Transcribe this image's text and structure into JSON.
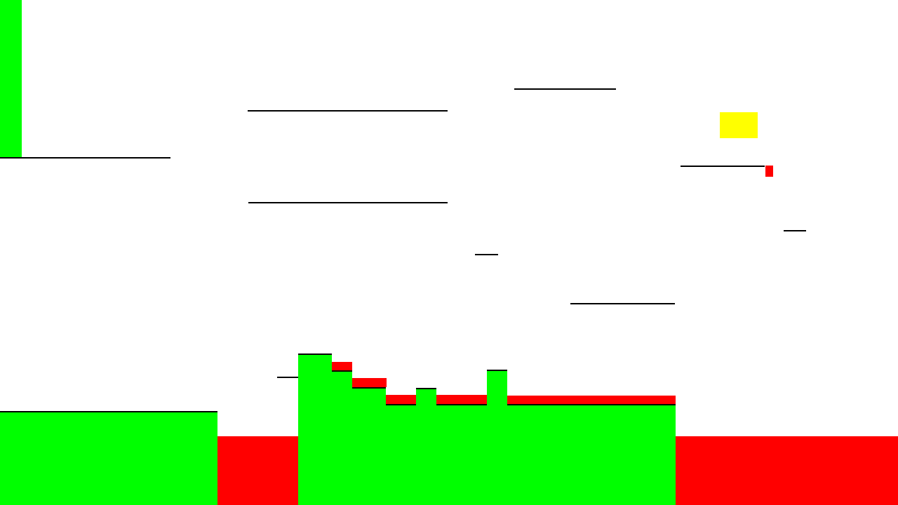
{
  "level": {
    "background_color": "#ffffff",
    "ground_color": "#00ff00",
    "hazard_color": "#ff0000",
    "goal_color": "#ffff00",
    "platform_color": "#000000"
  }
}
